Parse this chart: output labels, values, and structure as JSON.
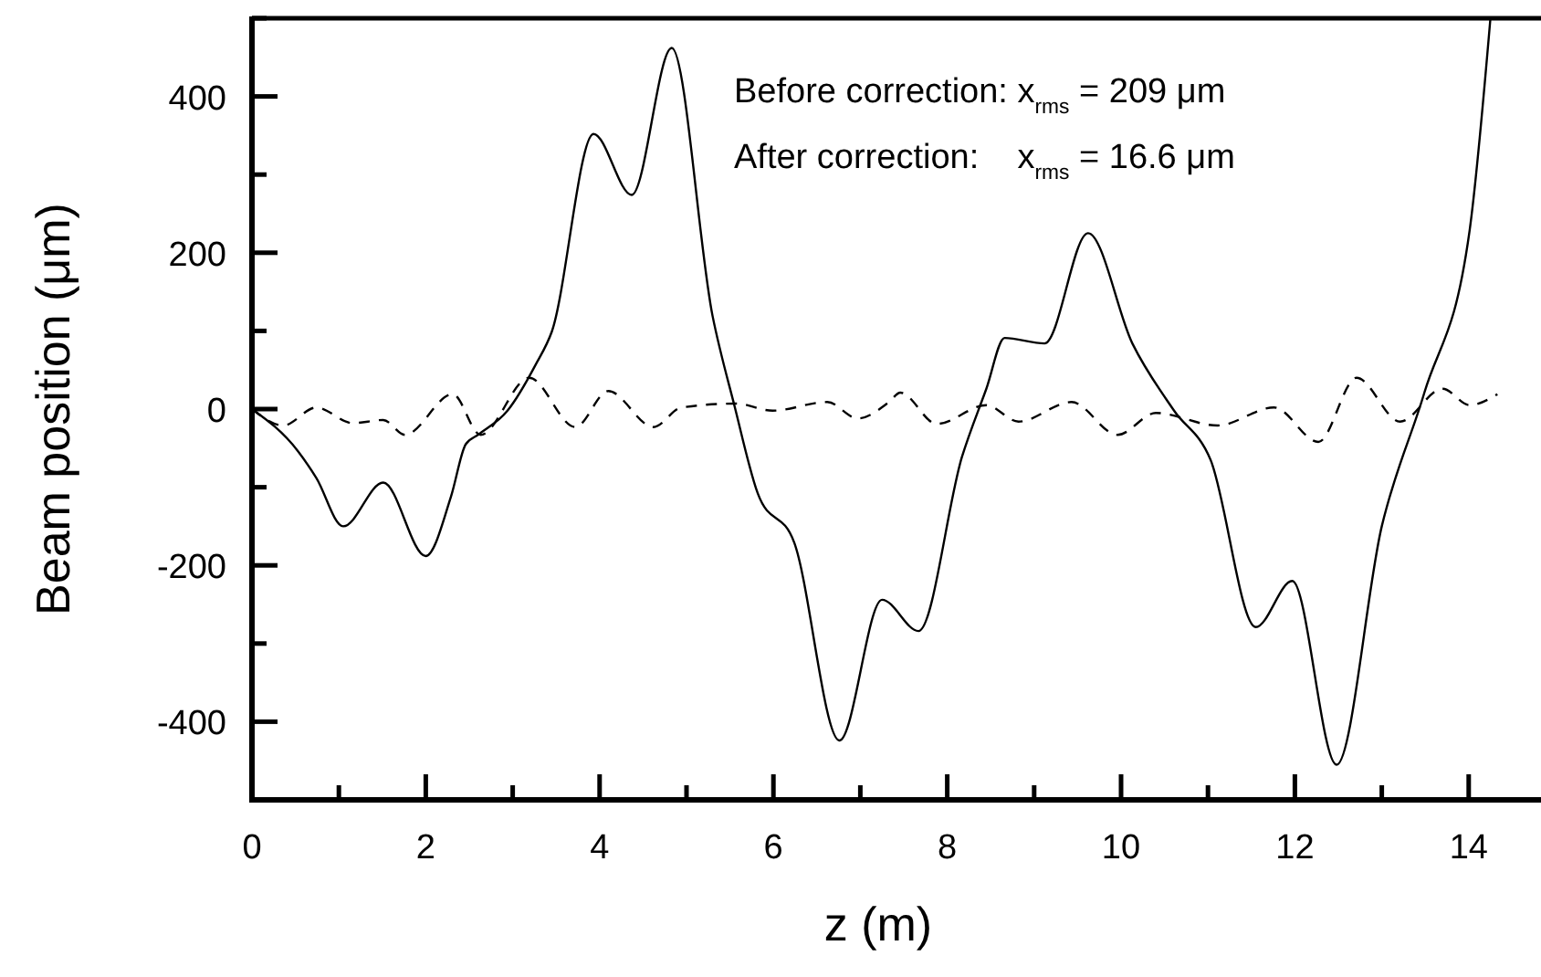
{
  "chart_data": {
    "type": "line",
    "xlabel": "z (m)",
    "ylabel": "Beam position (μm)",
    "xlim": [
      0,
      14.8
    ],
    "ylim": [
      -500,
      500
    ],
    "xticks": [
      0,
      {
        "value": 1,
        "label": null
      },
      2,
      {
        "value": 3,
        "label": null
      },
      4,
      {
        "value": 5,
        "label": null
      },
      6,
      {
        "value": 7,
        "label": null
      },
      8,
      {
        "value": 9,
        "label": null
      },
      10,
      {
        "value": 11,
        "label": null
      },
      12,
      {
        "value": 13,
        "label": null
      },
      14
    ],
    "yticks": [
      {
        "value": -500,
        "label": null
      },
      -400,
      {
        "value": -300,
        "label": null
      },
      -200,
      {
        "value": -100,
        "label": null
      },
      0,
      {
        "value": 100,
        "label": null
      },
      200,
      {
        "value": 300,
        "label": null
      },
      400,
      {
        "value": 500,
        "label": null
      }
    ],
    "grid": false,
    "series": [
      {
        "color": "#000000",
        "line_style": "solid",
        "x": [
          0,
          0.53,
          0.74,
          1.05,
          1.51,
          2.0,
          2.29,
          2.46,
          2.6,
          2.94,
          3.26,
          3.45,
          3.93,
          4.37,
          4.83,
          5.3,
          5.55,
          5.82,
          6.24,
          6.76,
          7.25,
          7.67,
          8.17,
          8.45,
          8.66,
          9.12,
          9.62,
          10.13,
          10.61,
          11.03,
          11.55,
          11.97,
          12.48,
          13.0,
          13.49,
          14.01,
          14.25
        ],
        "values": [
          0,
          -54,
          -88,
          -150,
          -94,
          -188,
          -112,
          -45,
          -33,
          -2,
          56,
          99,
          352,
          274,
          462,
          119,
          5,
          -108,
          -171,
          -424,
          -244,
          -284,
          -61,
          26,
          91,
          84,
          225,
          84,
          -2,
          -65,
          -279,
          -220,
          -455,
          -150,
          21,
          228,
          500
        ]
      },
      {
        "color": "#000000",
        "line_style": "dashed",
        "x": [
          0,
          0.36,
          0.74,
          1.16,
          1.51,
          1.76,
          2.31,
          2.63,
          3.19,
          3.72,
          4.1,
          4.62,
          4.94,
          5.57,
          5.99,
          6.62,
          6.97,
          7.33,
          7.46,
          7.88,
          8.45,
          8.82,
          9.43,
          9.96,
          10.4,
          11.11,
          11.76,
          12.27,
          12.71,
          13.21,
          13.7,
          14.01,
          14.33
        ],
        "values": [
          0,
          -21,
          2,
          -18,
          -14,
          -33,
          19,
          -33,
          40,
          -23,
          23,
          -23,
          2,
          7,
          -2,
          9,
          -12,
          9,
          21,
          -19,
          5,
          -16,
          9,
          -33,
          -5,
          -21,
          2,
          -42,
          40,
          -16,
          26,
          5,
          19
        ]
      }
    ],
    "annotations": [
      "Before correction: x$_{rms}$ = 209 μm",
      "After correction:    x$_{rms}$ = 16.6 μm"
    ]
  }
}
